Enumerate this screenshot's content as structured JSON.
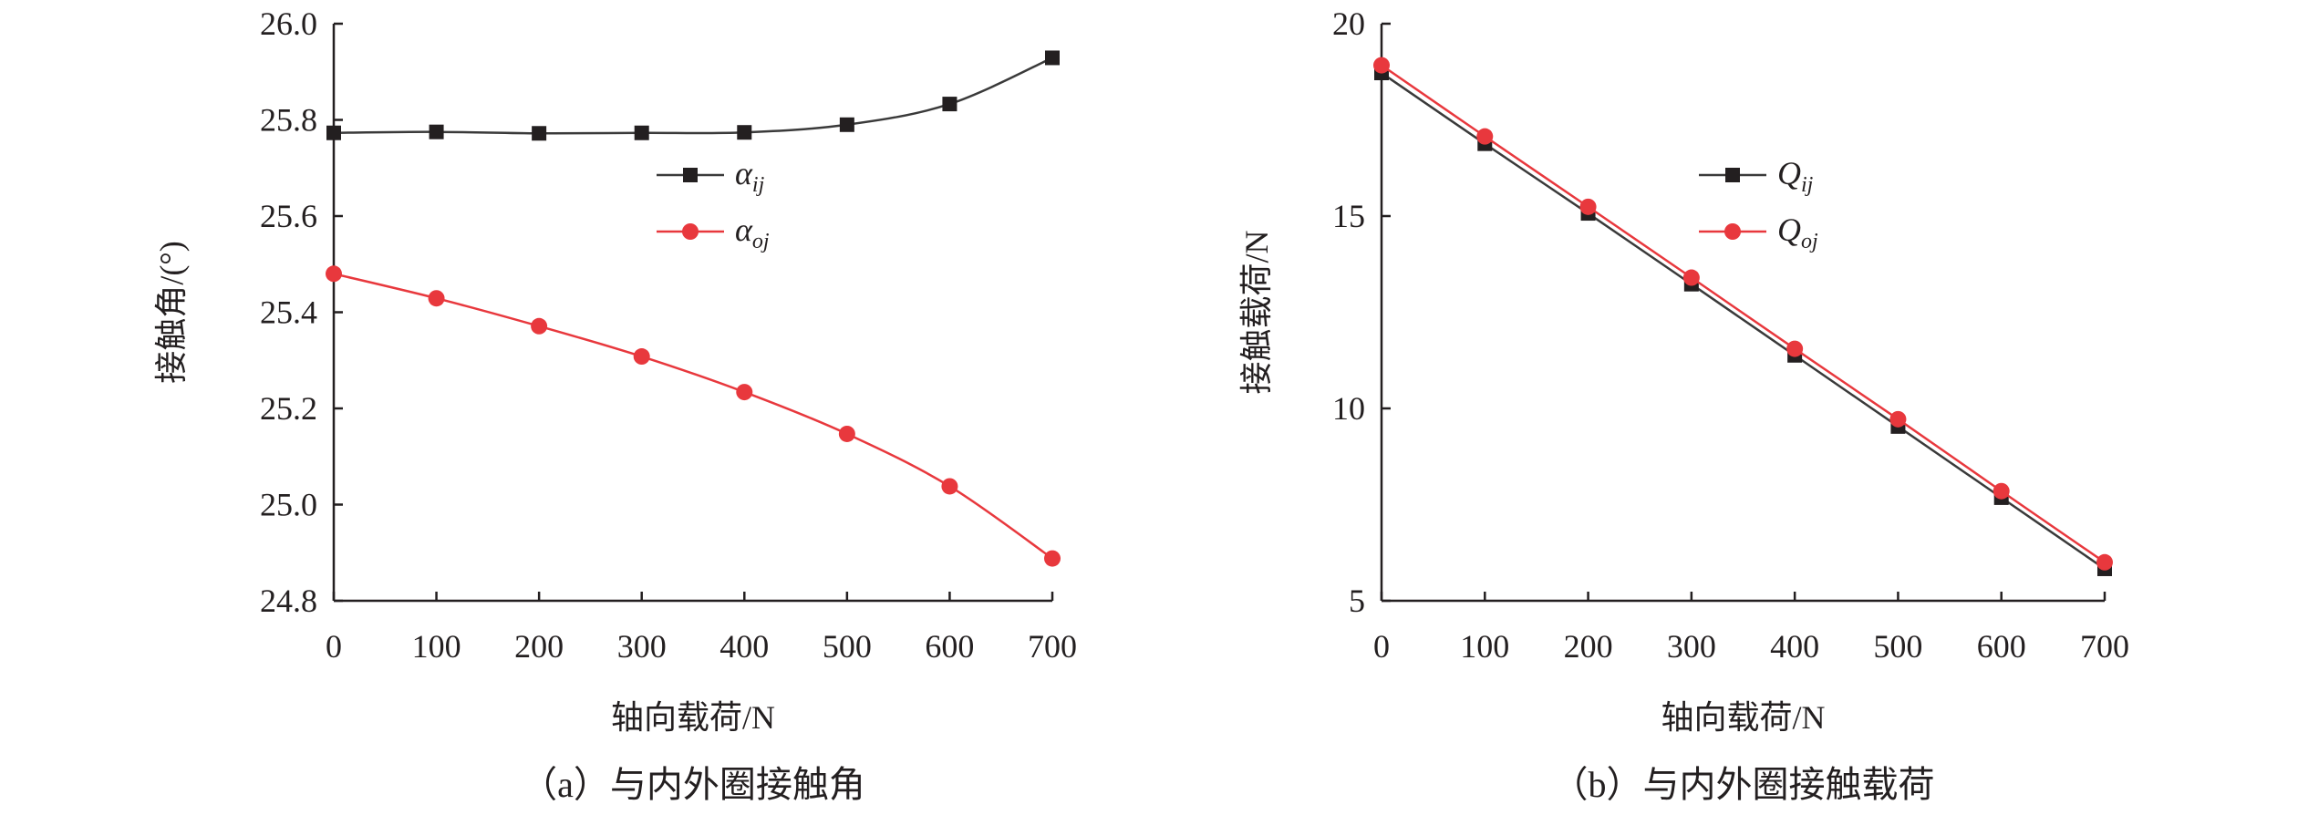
{
  "chart_data": [
    {
      "type": "line",
      "caption": "（a）与内外圈接触角",
      "xlabel": "轴向载荷/N",
      "ylabel": "接触角/(°)",
      "x": [
        0,
        100,
        200,
        300,
        400,
        500,
        600,
        700
      ],
      "xlim": [
        0,
        700
      ],
      "ylim": [
        24.8,
        26.0
      ],
      "xticks": [
        "0",
        "100",
        "200",
        "300",
        "400",
        "500",
        "600",
        "700"
      ],
      "yticks": [
        "24.8",
        "25.0",
        "25.2",
        "25.4",
        "25.6",
        "25.8",
        "26.0"
      ],
      "ytick_values": [
        24.8,
        25.0,
        25.2,
        25.4,
        25.6,
        25.8,
        26.0
      ],
      "grid": false,
      "legend_position": "top-center",
      "series": [
        {
          "name": "α",
          "sub": "ij",
          "marker": "square",
          "color": "#3a3a3a",
          "values": [
            25.773,
            25.775,
            25.772,
            25.773,
            25.774,
            25.79,
            25.833,
            25.929
          ]
        },
        {
          "name": "α",
          "sub": "oj",
          "marker": "circle",
          "color": "#e8383d",
          "values": [
            25.48,
            25.429,
            25.371,
            25.308,
            25.234,
            25.147,
            25.038,
            24.888
          ]
        }
      ]
    },
    {
      "type": "line",
      "caption": "（b）与内外圈接触载荷",
      "xlabel": "轴向载荷/N",
      "ylabel": "接触载荷/N",
      "x": [
        0,
        100,
        200,
        300,
        400,
        500,
        600,
        700
      ],
      "xlim": [
        0,
        700
      ],
      "ylim": [
        5,
        20
      ],
      "xticks": [
        "0",
        "100",
        "200",
        "300",
        "400",
        "500",
        "600",
        "700"
      ],
      "yticks": [
        "5",
        "10",
        "15",
        "20"
      ],
      "ytick_values": [
        5,
        10,
        15,
        20
      ],
      "grid": false,
      "legend_position": "top-center",
      "series": [
        {
          "name": "Q",
          "sub": "ij",
          "marker": "square",
          "color": "#3a3a3a",
          "values": [
            18.72,
            16.88,
            15.07,
            13.23,
            11.38,
            9.53,
            7.68,
            5.83
          ]
        },
        {
          "name": "Q",
          "sub": "oj",
          "marker": "circle",
          "color": "#e8383d",
          "values": [
            18.92,
            17.07,
            15.24,
            13.4,
            11.55,
            9.72,
            7.85,
            6.0
          ]
        }
      ]
    }
  ]
}
